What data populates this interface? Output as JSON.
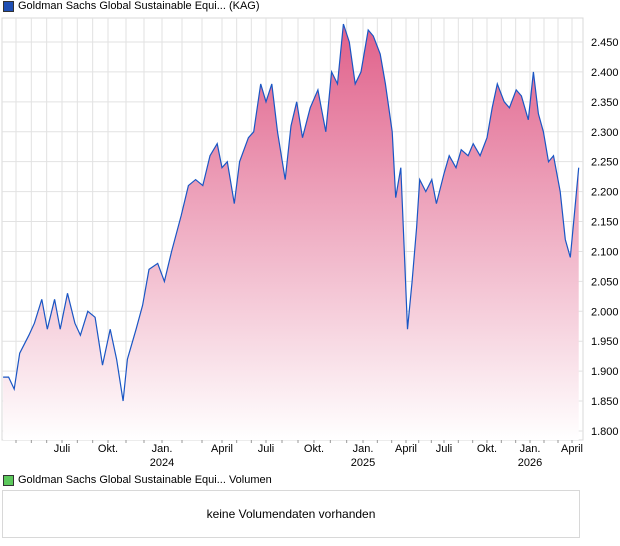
{
  "legend_main": {
    "label": "Goldman Sachs Global Sustainable Equi... (KAG)",
    "color": "#1f4fb4"
  },
  "legend_volume": {
    "label": "Goldman Sachs Global Sustainable Equi... Volumen",
    "color": "#5cc85c"
  },
  "volume_message": "keine Volumendaten vorhanden",
  "chart_data": {
    "type": "area",
    "title": "Goldman Sachs Global Sustainable Equi... (KAG)",
    "xlabel": "",
    "ylabel": "",
    "ylim": [
      1.78,
      2.49
    ],
    "grid": true,
    "line_color": "#1a56c4",
    "fill_top": "#e0608a",
    "fill_bottom": "#ffffff",
    "y_ticks": [
      "1.800",
      "1.850",
      "1.900",
      "1.950",
      "2.000",
      "2.050",
      "2.100",
      "2.150",
      "2.200",
      "2.250",
      "2.300",
      "2.350",
      "2.400",
      "2.450"
    ],
    "x_ticks": [
      {
        "t": 2023.5,
        "label": "Juli",
        "year": ""
      },
      {
        "t": 2023.75,
        "label": "Okt.",
        "year": ""
      },
      {
        "t": 2024.0,
        "label": "Jan.",
        "year": "2024"
      },
      {
        "t": 2024.25,
        "label": "April",
        "year": ""
      },
      {
        "t": 2024.5,
        "label": "Juli",
        "year": ""
      },
      {
        "t": 2024.75,
        "label": "Okt.",
        "year": ""
      },
      {
        "t": 2025.0,
        "label": "Jan.",
        "year": "2025"
      },
      {
        "t": 2025.25,
        "label": "April",
        "year": ""
      },
      {
        "t": 2025.5,
        "label": "Juli",
        "year": ""
      },
      {
        "t": 2025.75,
        "label": "Okt.",
        "year": ""
      },
      {
        "t": 2026.0,
        "label": "Jan.",
        "year": "2026"
      },
      {
        "t": 2026.25,
        "label": "April",
        "year": ""
      }
    ],
    "points": [
      [
        2023.18,
        1.89
      ],
      [
        2023.21,
        1.89
      ],
      [
        2023.24,
        1.87
      ],
      [
        2023.27,
        1.93
      ],
      [
        2023.32,
        1.96
      ],
      [
        2023.35,
        1.98
      ],
      [
        2023.39,
        2.02
      ],
      [
        2023.42,
        1.97
      ],
      [
        2023.46,
        2.02
      ],
      [
        2023.49,
        1.97
      ],
      [
        2023.53,
        2.03
      ],
      [
        2023.57,
        1.98
      ],
      [
        2023.6,
        1.96
      ],
      [
        2023.64,
        2.0
      ],
      [
        2023.68,
        1.99
      ],
      [
        2023.72,
        1.91
      ],
      [
        2023.76,
        1.97
      ],
      [
        2023.79,
        1.92
      ],
      [
        2023.82,
        1.85
      ],
      [
        2023.84,
        1.92
      ],
      [
        2023.88,
        1.97
      ],
      [
        2023.91,
        2.01
      ],
      [
        2023.94,
        2.07
      ],
      [
        2023.98,
        2.08
      ],
      [
        2024.01,
        2.05
      ],
      [
        2024.04,
        2.1
      ],
      [
        2024.08,
        2.16
      ],
      [
        2024.11,
        2.21
      ],
      [
        2024.14,
        2.22
      ],
      [
        2024.17,
        2.21
      ],
      [
        2024.2,
        2.26
      ],
      [
        2024.23,
        2.28
      ],
      [
        2024.25,
        2.24
      ],
      [
        2024.28,
        2.25
      ],
      [
        2024.32,
        2.18
      ],
      [
        2024.35,
        2.25
      ],
      [
        2024.4,
        2.29
      ],
      [
        2024.43,
        2.3
      ],
      [
        2024.47,
        2.38
      ],
      [
        2024.5,
        2.35
      ],
      [
        2024.53,
        2.38
      ],
      [
        2024.56,
        2.3
      ],
      [
        2024.6,
        2.22
      ],
      [
        2024.63,
        2.31
      ],
      [
        2024.66,
        2.35
      ],
      [
        2024.69,
        2.29
      ],
      [
        2024.73,
        2.34
      ],
      [
        2024.77,
        2.37
      ],
      [
        2024.81,
        2.3
      ],
      [
        2024.84,
        2.4
      ],
      [
        2024.87,
        2.38
      ],
      [
        2024.9,
        2.48
      ],
      [
        2024.93,
        2.45
      ],
      [
        2024.96,
        2.38
      ],
      [
        2024.99,
        2.4
      ],
      [
        2025.03,
        2.47
      ],
      [
        2025.06,
        2.46
      ],
      [
        2025.1,
        2.43
      ],
      [
        2025.13,
        2.38
      ],
      [
        2025.17,
        2.3
      ],
      [
        2025.19,
        2.19
      ],
      [
        2025.22,
        2.24
      ],
      [
        2025.24,
        2.1
      ],
      [
        2025.26,
        1.97
      ],
      [
        2025.29,
        2.05
      ],
      [
        2025.32,
        2.14
      ],
      [
        2025.34,
        2.22
      ],
      [
        2025.38,
        2.2
      ],
      [
        2025.42,
        2.22
      ],
      [
        2025.45,
        2.18
      ],
      [
        2025.5,
        2.23
      ],
      [
        2025.53,
        2.26
      ],
      [
        2025.57,
        2.24
      ],
      [
        2025.6,
        2.27
      ],
      [
        2025.64,
        2.26
      ],
      [
        2025.67,
        2.28
      ],
      [
        2025.71,
        2.26
      ],
      [
        2025.75,
        2.29
      ],
      [
        2025.78,
        2.34
      ],
      [
        2025.81,
        2.38
      ],
      [
        2025.85,
        2.35
      ],
      [
        2025.88,
        2.34
      ],
      [
        2025.92,
        2.37
      ],
      [
        2025.95,
        2.36
      ],
      [
        2025.99,
        2.32
      ],
      [
        2026.02,
        2.4
      ],
      [
        2026.05,
        2.33
      ],
      [
        2026.08,
        2.3
      ],
      [
        2026.11,
        2.25
      ],
      [
        2026.14,
        2.26
      ],
      [
        2026.18,
        2.2
      ],
      [
        2026.21,
        2.12
      ],
      [
        2026.24,
        2.09
      ],
      [
        2026.26,
        2.15
      ],
      [
        2026.29,
        2.24
      ]
    ]
  }
}
